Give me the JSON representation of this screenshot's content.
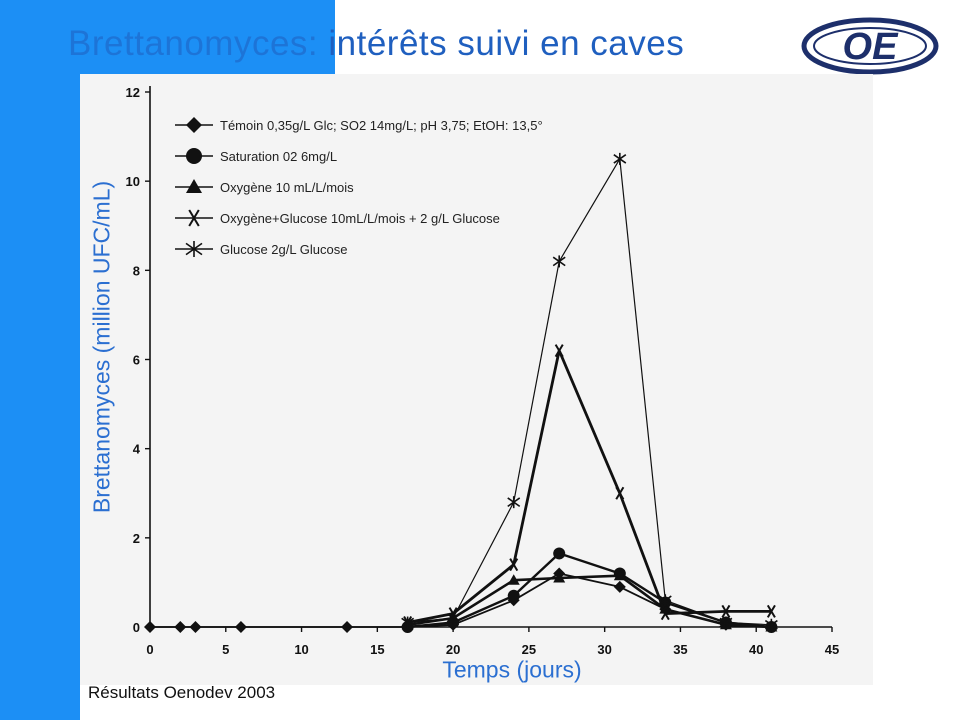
{
  "header": {
    "title_part1": "Brettanomyces:",
    "title_part2": " intérêts suivi en caves"
  },
  "footer": {
    "credit": "Résultats Oenodev 2003"
  },
  "colors": {
    "accent_blue": "#1c8ff5",
    "text_blue": "#2b6fd1",
    "logo_navy": "#1d2f6b"
  },
  "logo": {
    "text": "OE"
  },
  "chart_data": {
    "type": "line",
    "title": "",
    "xlabel": "Temps (jours)",
    "ylabel": "Brettanomyces (million UFC/mL)",
    "xlim": [
      0,
      45
    ],
    "ylim": [
      0,
      12
    ],
    "x_ticks": [
      "0",
      "5",
      "10",
      "15",
      "20",
      "25",
      "30",
      "35",
      "40",
      "45"
    ],
    "y_ticks": [
      "0",
      "2",
      "4",
      "6",
      "8",
      "10",
      "12"
    ],
    "grid": false,
    "legend_position": "top-left",
    "series": [
      {
        "name": "Témoin  0,35g/L Glc; SO2 14mg/L; pH 3,75; EtOH: 13,5°",
        "marker": "diamond",
        "x": [
          0,
          2,
          3,
          6,
          13,
          17,
          20,
          24,
          27,
          31,
          34,
          38,
          41
        ],
        "y": [
          0,
          0,
          0,
          0,
          0,
          0,
          0.05,
          0.6,
          1.2,
          0.9,
          0.4,
          0.05,
          0
        ]
      },
      {
        "name": "Saturation  02 6mg/L",
        "marker": "circle",
        "x": [
          17,
          20,
          24,
          27,
          31,
          34,
          38,
          41
        ],
        "y": [
          0,
          0.1,
          0.7,
          1.65,
          1.2,
          0.55,
          0.1,
          0
        ]
      },
      {
        "name": "Oxygène  10 mL/L/mois",
        "marker": "triangle",
        "x": [
          17,
          20,
          24,
          27,
          31,
          34,
          38,
          41
        ],
        "y": [
          0.05,
          0.2,
          1.05,
          1.1,
          1.15,
          0.4,
          0.05,
          0
        ]
      },
      {
        "name": "Oxygène+Glucose  10mL/L/mois  + 2 g/L Glucose",
        "marker": "x",
        "x": [
          17,
          20,
          24,
          27,
          31,
          34,
          38,
          41
        ],
        "y": [
          0.1,
          0.3,
          1.4,
          6.2,
          3.0,
          0.3,
          0.35,
          0.35
        ]
      },
      {
        "name": "Glucose  2g/L Glucose",
        "marker": "asterisk",
        "x": [
          17,
          20,
          24,
          27,
          31,
          34,
          38,
          41
        ],
        "y": [
          0.1,
          0.2,
          2.8,
          8.2,
          10.5,
          0.6,
          0.1,
          0.05
        ]
      }
    ]
  }
}
